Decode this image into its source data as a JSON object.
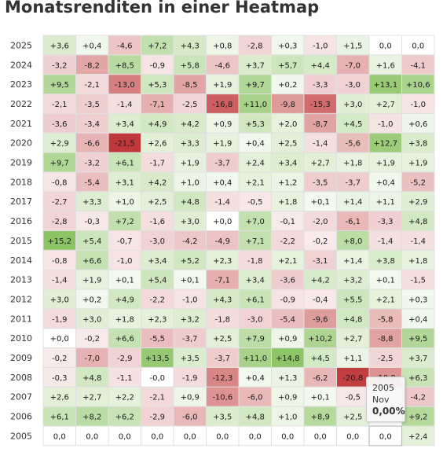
{
  "title": "Monatsrenditen in einer Heatmap",
  "chart_data": {
    "type": "heatmap",
    "title": "Monatsrenditen in einer Heatmap",
    "years": [
      "2025",
      "2024",
      "2023",
      "2022",
      "2021",
      "2020",
      "2019",
      "2018",
      "2017",
      "2016",
      "2015",
      "2014",
      "2013",
      "2012",
      "2011",
      "2010",
      "2009",
      "2008",
      "2007",
      "2006",
      "2005"
    ],
    "rows": [
      [
        "+3,6",
        "+0,4",
        "-4,6",
        "+7,2",
        "+4,3",
        "+0,8",
        "-2,8",
        "+0,3",
        "-1,0",
        "+1,5",
        "0,0",
        "0,0"
      ],
      [
        "-3,2",
        "-8,2",
        "+8,5",
        "-0,9",
        "+5,8",
        "-4,6",
        "+3,7",
        "+5,7",
        "+4,4",
        "-7,0",
        "+1,6",
        "-4,1"
      ],
      [
        "+9,5",
        "-2,1",
        "-13,0",
        "+5,3",
        "-8,5",
        "+1,9",
        "+9,7",
        "+0,2",
        "-3,3",
        "-3,0",
        "+13,1",
        "+10,6"
      ],
      [
        "-2,1",
        "-3,5",
        "-1,4",
        "-7,1",
        "-2,5",
        "-16,8",
        "+11,0",
        "-9,8",
        "-15,3",
        "+3,0",
        "+2,7",
        "-1,0"
      ],
      [
        "-3,6",
        "-3,4",
        "+3,4",
        "+4,9",
        "+4,2",
        "+0,9",
        "+5,3",
        "+2,0",
        "-8,7",
        "+4,5",
        "-1,0",
        "+0,6"
      ],
      [
        "+2,9",
        "-6,6",
        "-21,5",
        "+2,6",
        "+3,3",
        "+1,9",
        "+0,4",
        "+2,5",
        "-1,4",
        "-5,6",
        "+12,7",
        "+3,8"
      ],
      [
        "+9,7",
        "-3,2",
        "+6,1",
        "-1,7",
        "+1,9",
        "-3,7",
        "+2,4",
        "+3,4",
        "+2,7",
        "+1,8",
        "+1,9",
        "+1,9"
      ],
      [
        "-0,8",
        "-5,4",
        "+3,1",
        "+4,2",
        "+1,0",
        "+0,4",
        "+2,1",
        "+1,2",
        "-3,5",
        "-3,7",
        "+0,4",
        "-5,2"
      ],
      [
        "-2,7",
        "+3,3",
        "+1,0",
        "+2,5",
        "+4,8",
        "-1,4",
        "-0,5",
        "+1,8",
        "+0,1",
        "+1,4",
        "+1,1",
        "+2,9"
      ],
      [
        "-2,8",
        "-0,3",
        "+7,2",
        "-1,6",
        "+3,0",
        "+0,0",
        "+7,0",
        "-0,1",
        "-2,0",
        "-6,1",
        "-3,3",
        "+4,8"
      ],
      [
        "+15,2",
        "+5,4",
        "-0,7",
        "-3,0",
        "-4,2",
        "-4,9",
        "+7,1",
        "-2,2",
        "-0,2",
        "+8,0",
        "-1,4",
        "-1,4"
      ],
      [
        "-0,8",
        "+6,6",
        "-1,0",
        "+3,4",
        "+5,2",
        "+2,3",
        "-1,8",
        "+2,1",
        "-3,1",
        "+1,4",
        "+3,8",
        "+1,8"
      ],
      [
        "-1,4",
        "+1,9",
        "+0,1",
        "+5,4",
        "+0,1",
        "-7,1",
        "+3,4",
        "-3,6",
        "+4,2",
        "+3,2",
        "+0,1",
        "-1,5"
      ],
      [
        "+3,0",
        "+0,2",
        "+4,9",
        "-2,2",
        "-1,0",
        "+4,3",
        "+6,1",
        "-0,9",
        "-0,4",
        "+5,5",
        "+2,1",
        "+0,3"
      ],
      [
        "-1,9",
        "+3,0",
        "+1,8",
        "+2,3",
        "+3,2",
        "-1,8",
        "-3,0",
        "-5,4",
        "-9,6",
        "+4,8",
        "-5,8",
        "+0,4"
      ],
      [
        "+0,0",
        "-0,2",
        "+6,6",
        "-5,5",
        "-3,7",
        "+2,5",
        "+7,9",
        "+0,9",
        "+10,2",
        "+2,7",
        "-8,8",
        "+9,5"
      ],
      [
        "-0,2",
        "-7,0",
        "-2,9",
        "+13,5",
        "+3,5",
        "-3,7",
        "+11,0",
        "+14,8",
        "+4,5",
        "+1,1",
        "-2,5",
        "+3,7"
      ],
      [
        "-0,3",
        "+4,8",
        "-1,1",
        "-0,0",
        "-1,9",
        "-12,3",
        "+0,4",
        "+1,3",
        "-6,2",
        "-20,8",
        "-10,8",
        "+6,3"
      ],
      [
        "+2,6",
        "+2,7",
        "+2,2",
        "-2,1",
        "+0,9",
        "-10,6",
        "-6,0",
        "+0,9",
        "+0,1",
        "-0,5",
        "",
        "-4,2"
      ],
      [
        "+6,1",
        "+8,2",
        "+6,2",
        "-2,9",
        "-6,0",
        "+3,5",
        "+4,8",
        "+1,0",
        "+8,9",
        "+2,5",
        "",
        "+9,2"
      ],
      [
        "0,0",
        "0,0",
        "0,0",
        "0,0",
        "0,0",
        "0,0",
        "0,0",
        "0,0",
        "0,0",
        "0,0",
        "0,0",
        "+2,4"
      ]
    ],
    "colors": {
      "positive": "#8cc465",
      "negative": "#c0393a",
      "neutral": "#ffffff",
      "grid": "#e0e0e0",
      "label": "#333333"
    }
  },
  "tooltip": {
    "year": "2005",
    "month": "Nov",
    "value": "0,00%"
  }
}
